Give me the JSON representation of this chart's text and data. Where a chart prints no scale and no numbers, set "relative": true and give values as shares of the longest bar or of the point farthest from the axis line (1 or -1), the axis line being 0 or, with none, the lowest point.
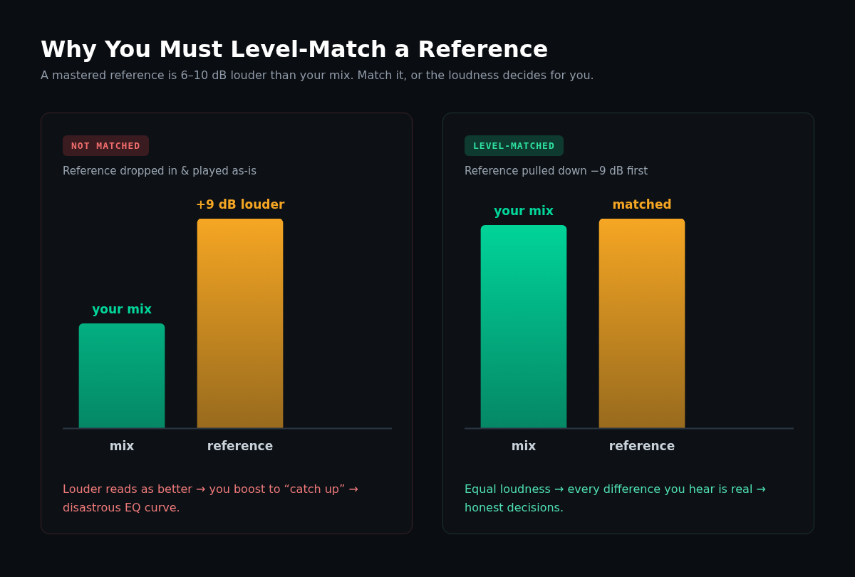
{
  "chart_data": [
    {
      "type": "other",
      "title": "Why You Must Level-Match a Reference",
      "subtitle": "A mastered reference is 6–10 dB louder than your mix. Match it, or the loudness decides for you."
    },
    {
      "type": "bar",
      "relative": true,
      "title": "NOT MATCHED",
      "subtitle": "Reference dropped in & played as-is",
      "categories": [
        "mix",
        "reference"
      ],
      "values": [
        0.5,
        1
      ],
      "colors": [
        "#00d69a",
        "#f5a623"
      ],
      "annotations": [
        {
          "text": "your mix",
          "x": "mix",
          "y": 0.5
        },
        {
          "text": "+9 dB louder",
          "x": "reference",
          "y": 1
        },
        "Louder reads as better → you boost to “catch up” → disastrous EQ curve."
      ]
    },
    {
      "type": "bar",
      "relative": true,
      "title": "LEVEL-MATCHED",
      "subtitle": "Reference pulled down −9 dB first",
      "categories": [
        "mix",
        "reference"
      ],
      "values": [
        0.968,
        1
      ],
      "colors": [
        "#00d69a",
        "#f5a623"
      ],
      "annotations": [
        {
          "text": "your mix",
          "x": "mix",
          "y": 0.968
        },
        {
          "text": "matched",
          "x": "reference",
          "y": 1
        },
        "Equal loudness → every difference you hear is real → honest decisions."
      ]
    }
  ]
}
